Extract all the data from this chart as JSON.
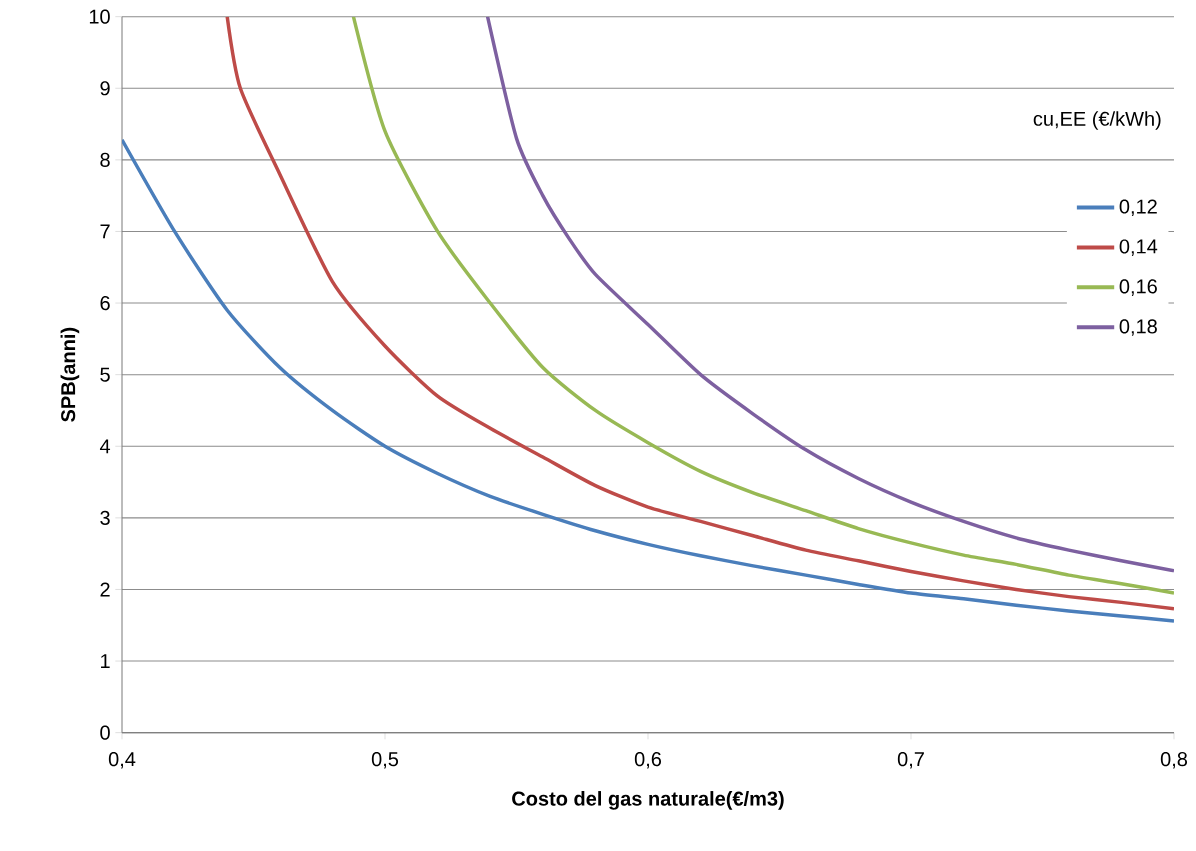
{
  "chart_data": {
    "type": "line",
    "xlabel": "Costo del gas naturale(€/m3)",
    "ylabel": "SPB(anni)",
    "legend_title": "cu,EE (€/kWh)",
    "legend": "right",
    "grid": "y",
    "marker": "none",
    "line_style": "solid",
    "xlim": [
      0.4,
      0.8
    ],
    "ylim": [
      0,
      10
    ],
    "xticks": [
      {
        "value": 0.4,
        "label": "0,4"
      },
      {
        "value": 0.5,
        "label": "0,5"
      },
      {
        "value": 0.6,
        "label": "0,6"
      },
      {
        "value": 0.7,
        "label": "0,7"
      },
      {
        "value": 0.8,
        "label": "0,8"
      }
    ],
    "yticks": [
      0,
      1,
      2,
      3,
      4,
      5,
      6,
      7,
      8,
      9,
      10
    ],
    "series": [
      {
        "name": "0,12",
        "color": "#4a7ebb",
        "x": [
          0.4,
          0.42,
          0.44,
          0.46,
          0.48,
          0.5,
          0.52,
          0.54,
          0.56,
          0.58,
          0.6,
          0.62,
          0.64,
          0.66,
          0.68,
          0.7,
          0.72,
          0.74,
          0.76,
          0.78,
          0.8
        ],
        "values": [
          8.28,
          7.0,
          5.9,
          5.1,
          4.5,
          4.0,
          3.62,
          3.3,
          3.05,
          2.82,
          2.63,
          2.47,
          2.33,
          2.2,
          2.07,
          1.95,
          1.87,
          1.78,
          1.7,
          1.63,
          1.56
        ]
      },
      {
        "name": "0,14",
        "color": "#be4b48",
        "x": [
          0.44,
          0.445,
          0.46,
          0.48,
          0.5,
          0.52,
          0.54,
          0.56,
          0.58,
          0.6,
          0.62,
          0.64,
          0.66,
          0.68,
          0.7,
          0.72,
          0.74,
          0.76,
          0.78,
          0.8
        ],
        "values": [
          10,
          9.0,
          7.8,
          6.3,
          5.4,
          4.7,
          4.25,
          3.85,
          3.45,
          3.15,
          2.95,
          2.75,
          2.55,
          2.4,
          2.25,
          2.12,
          2.0,
          1.9,
          1.82,
          1.73
        ]
      },
      {
        "name": "0,16",
        "color": "#98b954",
        "x": [
          0.488,
          0.5,
          0.52,
          0.54,
          0.56,
          0.58,
          0.6,
          0.62,
          0.64,
          0.66,
          0.68,
          0.7,
          0.72,
          0.74,
          0.76,
          0.78,
          0.8
        ],
        "values": [
          10,
          8.4,
          7.0,
          6.0,
          5.1,
          4.5,
          4.05,
          3.65,
          3.35,
          3.1,
          2.85,
          2.65,
          2.48,
          2.35,
          2.2,
          2.08,
          1.95
        ]
      },
      {
        "name": "0,18",
        "color": "#7d60a0",
        "x": [
          0.539,
          0.55,
          0.56,
          0.57,
          0.58,
          0.6,
          0.62,
          0.64,
          0.66,
          0.68,
          0.7,
          0.72,
          0.74,
          0.76,
          0.78,
          0.8
        ],
        "values": [
          10,
          8.3,
          7.5,
          6.9,
          6.4,
          5.7,
          5.0,
          4.45,
          3.95,
          3.55,
          3.22,
          2.95,
          2.72,
          2.55,
          2.4,
          2.26
        ]
      }
    ]
  }
}
